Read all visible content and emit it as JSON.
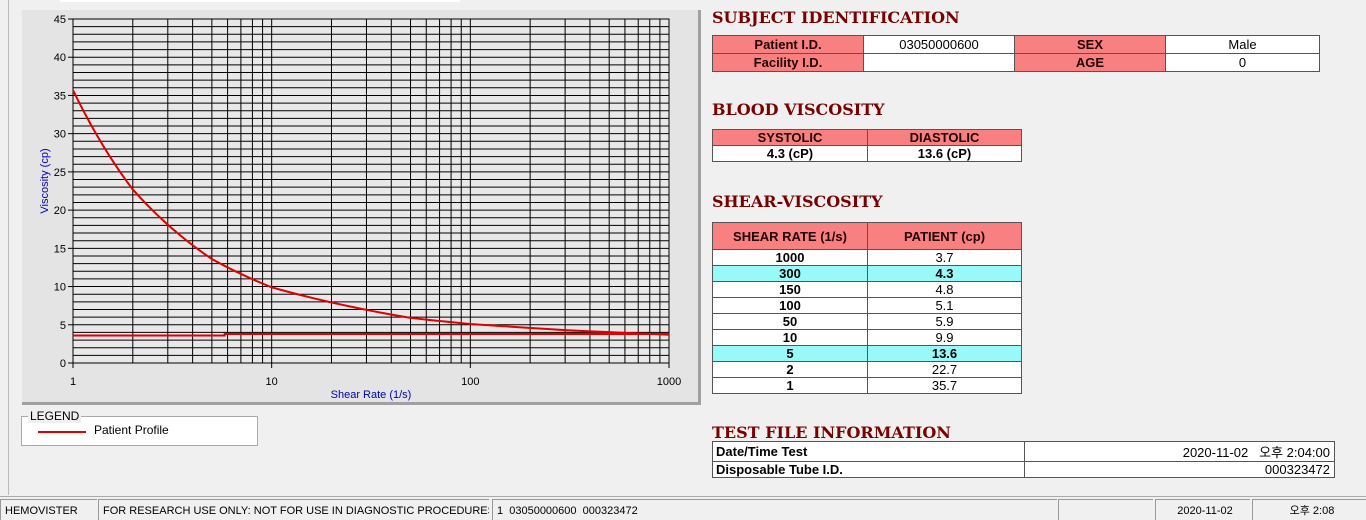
{
  "chart_data": {
    "type": "line",
    "xlabel": "Shear Rate (1/s)",
    "ylabel": "Viscosity (cp)",
    "xscale": "log",
    "xlim": [
      1,
      1000
    ],
    "ylim": [
      0,
      45
    ],
    "xticks": [
      "1",
      "10",
      "100",
      "1000"
    ],
    "yticks": [
      "0",
      "5",
      "10",
      "15",
      "20",
      "25",
      "30",
      "35",
      "40",
      "45"
    ],
    "grid": true,
    "series": [
      {
        "name": "Patient Profile",
        "color": "#e00000",
        "x": [
          1,
          2,
          5,
          10,
          50,
          100,
          150,
          300,
          1000
        ],
        "y": [
          35.7,
          22.7,
          13.6,
          9.9,
          5.9,
          5.1,
          4.8,
          4.3,
          3.7
        ]
      },
      {
        "color": "#e00000",
        "x": [
          1,
          5.8,
          5.8,
          1000
        ],
        "y": [
          3.6,
          3.6,
          3.8,
          3.8
        ]
      }
    ],
    "legend": "bottom-left"
  },
  "legend": {
    "title": "LEGEND",
    "entry": "Patient Profile"
  },
  "subject": {
    "title": "SUBJECT IDENTIFICATION",
    "patient_id_label": "Patient I.D.",
    "patient_id": "03050000600",
    "sex_label": "SEX",
    "sex": "Male",
    "facility_label": "Facility I.D.",
    "facility": "",
    "age_label": "AGE",
    "age": "0"
  },
  "blood": {
    "title": "BLOOD VISCOSITY",
    "systolic_label": "SYSTOLIC",
    "diastolic_label": "DIASTOLIC",
    "systolic": "4.3 (cP)",
    "diastolic": "13.6 (cP)"
  },
  "shear": {
    "title": "SHEAR-VISCOSITY",
    "col1": "SHEAR RATE (1/s)",
    "col2": "PATIENT (cp)",
    "rows": [
      [
        "1000",
        "3.7"
      ],
      [
        "300",
        "4.3"
      ],
      [
        "150",
        "4.8"
      ],
      [
        "100",
        "5.1"
      ],
      [
        "50",
        "5.9"
      ],
      [
        "10",
        "9.9"
      ],
      [
        "5",
        "13.6"
      ],
      [
        "2",
        "22.7"
      ],
      [
        "1",
        "35.7"
      ]
    ],
    "highlight_rows": [
      1,
      6
    ]
  },
  "testfile": {
    "title": "TEST FILE INFORMATION",
    "date_label": "Date/Time Test",
    "date": "2020-11-02   오후 2:04:00",
    "tube_label": "Disposable Tube I.D.",
    "tube": "000323472"
  },
  "status": {
    "app": "HEMOVISTER",
    "notice": "FOR RESEARCH USE ONLY: NOT FOR USE IN DIAGNOSTIC PROCEDURES",
    "record": "1  03050000600  000323472",
    "empty": "",
    "date": "2020-11-02",
    "time": "오후 2:08"
  }
}
